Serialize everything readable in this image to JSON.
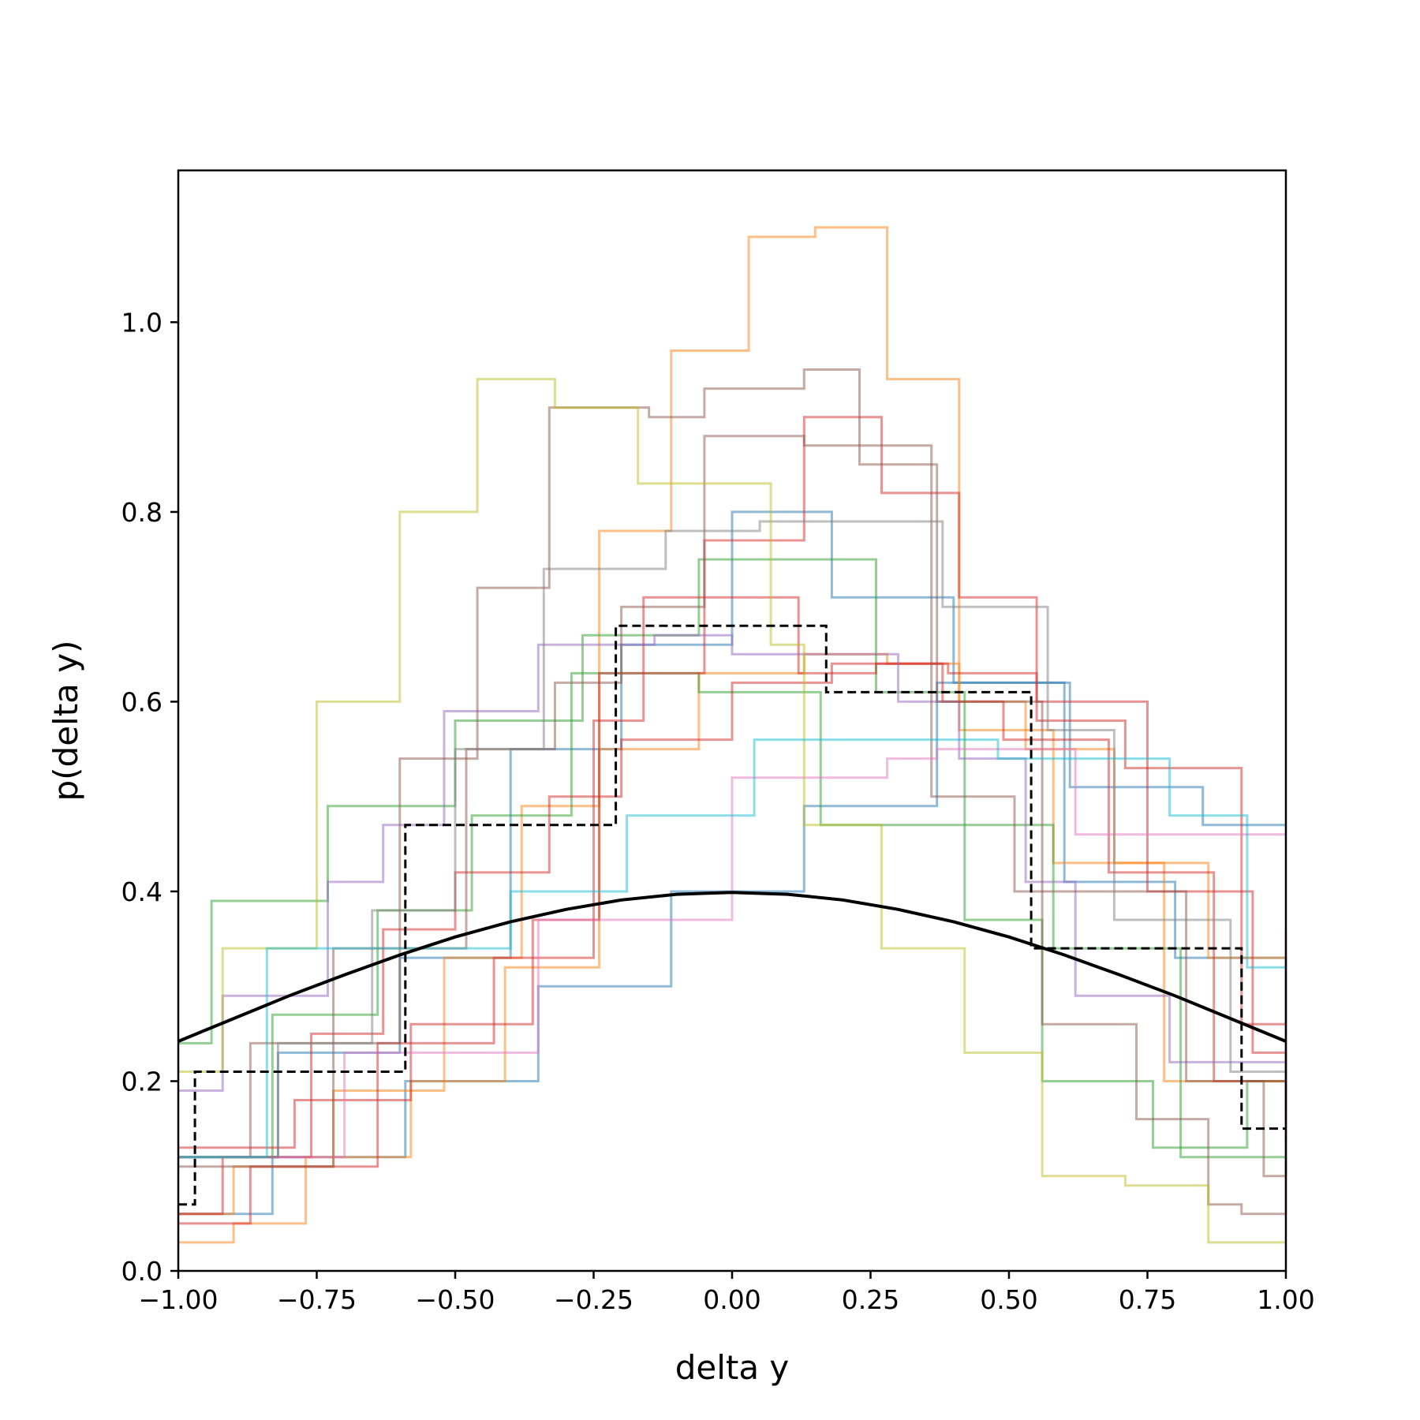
{
  "chart_data": {
    "type": "line",
    "title": "",
    "xlabel": "delta y",
    "ylabel": "p(delta y)",
    "xlim": [
      -1.0,
      1.0
    ],
    "ylim": [
      0.0,
      1.16
    ],
    "grid": false,
    "legend": "none",
    "x_ticks": [
      "−1.00",
      "−0.75",
      "−0.50",
      "−0.25",
      "0.00",
      "0.25",
      "0.50",
      "0.75",
      "1.00"
    ],
    "x_tick_values": [
      -1.0,
      -0.75,
      -0.5,
      -0.25,
      0.0,
      0.25,
      0.5,
      0.75,
      1.0
    ],
    "y_ticks": [
      "0.0",
      "0.2",
      "0.4",
      "0.6",
      "0.8",
      "1.0"
    ],
    "y_tick_values": [
      0.0,
      0.2,
      0.4,
      0.6,
      0.8,
      1.0
    ],
    "series": [
      {
        "color": "#1f77b4",
        "style": "step",
        "edges": [
          -1.0,
          -0.83,
          -0.59,
          -0.35,
          -0.11,
          0.13,
          0.37,
          0.61,
          0.85,
          1.0
        ],
        "values": [
          0.06,
          0.12,
          0.2,
          0.3,
          0.4,
          0.49,
          0.62,
          0.51,
          0.47
        ]
      },
      {
        "color": "#1f77b4",
        "style": "step",
        "edges": [
          -1.0,
          -0.82,
          -0.6,
          -0.4,
          -0.2,
          0.0,
          0.18,
          0.4,
          0.6,
          0.8,
          1.0
        ],
        "values": [
          0.12,
          0.23,
          0.33,
          0.55,
          0.66,
          0.8,
          0.71,
          0.62,
          0.41,
          0.33,
          0.17
        ]
      },
      {
        "color": "#ff7f0e",
        "style": "step",
        "edges": [
          -1.0,
          -0.9,
          -0.77,
          -0.58,
          -0.41,
          -0.24,
          -0.06,
          0.13,
          0.28,
          0.41,
          0.58,
          0.78,
          1.0
        ],
        "values": [
          0.03,
          0.05,
          0.12,
          0.2,
          0.32,
          0.55,
          0.63,
          0.65,
          0.64,
          0.57,
          0.43,
          0.2,
          0.06
        ]
      },
      {
        "color": "#ff7f0e",
        "style": "step",
        "edges": [
          -1.0,
          -0.9,
          -0.72,
          -0.52,
          -0.38,
          -0.24,
          -0.11,
          0.03,
          0.15,
          0.28,
          0.41,
          0.53,
          0.69,
          0.86,
          1.0
        ],
        "values": [
          0.06,
          0.11,
          0.19,
          0.33,
          0.49,
          0.78,
          0.97,
          1.09,
          1.1,
          0.94,
          0.6,
          0.55,
          0.43,
          0.33,
          0.36
        ]
      },
      {
        "color": "#2ca02c",
        "style": "step",
        "edges": [
          -1.0,
          -0.94,
          -0.73,
          -0.5,
          -0.27,
          -0.06,
          0.26,
          0.42,
          0.56,
          0.76,
          0.93,
          1.0
        ],
        "values": [
          0.24,
          0.39,
          0.49,
          0.58,
          0.67,
          0.75,
          0.61,
          0.37,
          0.2,
          0.13,
          0.2,
          0.2
        ]
      },
      {
        "color": "#2ca02c",
        "style": "step",
        "edges": [
          -1.0,
          -0.83,
          -0.64,
          -0.47,
          -0.29,
          -0.06,
          0.16,
          0.38,
          0.58,
          0.81,
          1.0
        ],
        "values": [
          0.12,
          0.27,
          0.38,
          0.48,
          0.63,
          0.61,
          0.47,
          0.47,
          0.34,
          0.12,
          0.1
        ]
      },
      {
        "color": "#d62728",
        "style": "step",
        "edges": [
          -1.0,
          -0.87,
          -0.64,
          -0.43,
          -0.25,
          -0.16,
          0.12,
          0.26,
          0.39,
          0.55,
          0.71,
          0.92,
          1.0
        ],
        "values": [
          0.05,
          0.11,
          0.24,
          0.33,
          0.58,
          0.71,
          0.63,
          0.64,
          0.63,
          0.58,
          0.53,
          0.26,
          0.26
        ]
      },
      {
        "color": "#d62728",
        "style": "step",
        "edges": [
          -1.0,
          -0.79,
          -0.58,
          -0.36,
          -0.24,
          -0.05,
          0.13,
          0.27,
          0.41,
          0.55,
          0.75,
          0.94,
          1.0
        ],
        "values": [
          0.13,
          0.18,
          0.26,
          0.37,
          0.63,
          0.77,
          0.9,
          0.82,
          0.71,
          0.6,
          0.4,
          0.23,
          0.14
        ]
      },
      {
        "color": "#d62728",
        "style": "step",
        "edges": [
          -1.0,
          -0.92,
          -0.76,
          -0.63,
          -0.5,
          -0.33,
          -0.2,
          0.0,
          0.18,
          0.38,
          0.49,
          0.68,
          0.87,
          1.0
        ],
        "values": [
          0.06,
          0.12,
          0.25,
          0.36,
          0.42,
          0.5,
          0.56,
          0.62,
          0.64,
          0.6,
          0.56,
          0.42,
          0.2,
          0.19
        ]
      },
      {
        "color": "#9467bd",
        "style": "step",
        "edges": [
          -1.0,
          -0.95,
          -0.92,
          -0.73,
          -0.63,
          -0.52,
          -0.35,
          -0.14,
          0.0,
          0.3,
          0.41,
          0.53,
          0.62,
          0.79,
          0.97,
          1.0
        ],
        "values": [
          0.19,
          0.19,
          0.29,
          0.41,
          0.47,
          0.59,
          0.66,
          0.67,
          0.65,
          0.6,
          0.54,
          0.41,
          0.29,
          0.22,
          0.22,
          0.22
        ]
      },
      {
        "color": "#8c564b",
        "style": "step",
        "edges": [
          -1.0,
          -0.87,
          -0.6,
          -0.46,
          -0.33,
          -0.15,
          -0.05,
          0.13,
          0.23,
          0.37,
          0.56,
          0.73,
          0.86,
          0.92,
          1.0
        ],
        "values": [
          0.12,
          0.24,
          0.54,
          0.72,
          0.91,
          0.9,
          0.93,
          0.95,
          0.85,
          0.6,
          0.26,
          0.16,
          0.07,
          0.06,
          0.06
        ]
      },
      {
        "color": "#8c564b",
        "style": "step",
        "edges": [
          -1.0,
          -0.72,
          -0.48,
          -0.32,
          -0.2,
          -0.05,
          0.13,
          0.36,
          0.51,
          0.82,
          0.96,
          1.0
        ],
        "values": [
          0.11,
          0.34,
          0.55,
          0.62,
          0.7,
          0.88,
          0.87,
          0.5,
          0.4,
          0.2,
          0.1,
          0.1
        ]
      },
      {
        "color": "#e377c2",
        "style": "step",
        "edges": [
          -1.0,
          -0.7,
          -0.35,
          -0.12,
          0.0,
          0.28,
          0.37,
          0.62,
          0.98,
          1.0
        ],
        "values": [
          0.12,
          0.23,
          0.37,
          0.37,
          0.52,
          0.54,
          0.55,
          0.46,
          0.46,
          0.46
        ]
      },
      {
        "color": "#7f7f7f",
        "style": "step",
        "edges": [
          -1.0,
          -0.82,
          -0.65,
          -0.5,
          -0.34,
          -0.12,
          0.05,
          0.16,
          0.38,
          0.57,
          0.69,
          0.9,
          1.0
        ],
        "values": [
          0.12,
          0.24,
          0.38,
          0.55,
          0.74,
          0.78,
          0.79,
          0.79,
          0.7,
          0.57,
          0.37,
          0.21,
          0.1
        ]
      },
      {
        "color": "#bcbd22",
        "style": "step",
        "edges": [
          -1.0,
          -0.92,
          -0.75,
          -0.6,
          -0.46,
          -0.32,
          -0.17,
          0.07,
          0.13,
          0.27,
          0.42,
          0.56,
          0.71,
          0.86,
          1.0
        ],
        "values": [
          0.21,
          0.34,
          0.6,
          0.8,
          0.94,
          0.91,
          0.83,
          0.66,
          0.47,
          0.34,
          0.23,
          0.1,
          0.09,
          0.03,
          0.03
        ]
      },
      {
        "color": "#17becf",
        "style": "step",
        "edges": [
          -1.0,
          -0.84,
          -0.4,
          -0.19,
          0.04,
          0.25,
          0.48,
          0.79,
          0.93,
          1.0
        ],
        "values": [
          0.12,
          0.34,
          0.4,
          0.48,
          0.56,
          0.56,
          0.54,
          0.48,
          0.32,
          0.32
        ]
      }
    ],
    "reference_step": {
      "color": "#000000",
      "style": "dashed-step",
      "edges": [
        -1.0,
        -0.97,
        -0.59,
        -0.21,
        0.17,
        0.54,
        0.92,
        1.0
      ],
      "values": [
        0.07,
        0.21,
        0.47,
        0.68,
        0.61,
        0.34,
        0.15
      ]
    },
    "reference_curve": {
      "color": "#000000",
      "style": "solid",
      "x": [
        -1.0,
        -0.9,
        -0.8,
        -0.7,
        -0.6,
        -0.5,
        -0.4,
        -0.3,
        -0.2,
        -0.1,
        0.0,
        0.1,
        0.2,
        0.3,
        0.4,
        0.5,
        0.6,
        0.7,
        0.8,
        0.9,
        1.0
      ],
      "y": [
        0.242,
        0.266,
        0.29,
        0.312,
        0.333,
        0.352,
        0.368,
        0.381,
        0.391,
        0.397,
        0.399,
        0.397,
        0.391,
        0.381,
        0.368,
        0.352,
        0.333,
        0.312,
        0.29,
        0.266,
        0.242
      ]
    }
  }
}
